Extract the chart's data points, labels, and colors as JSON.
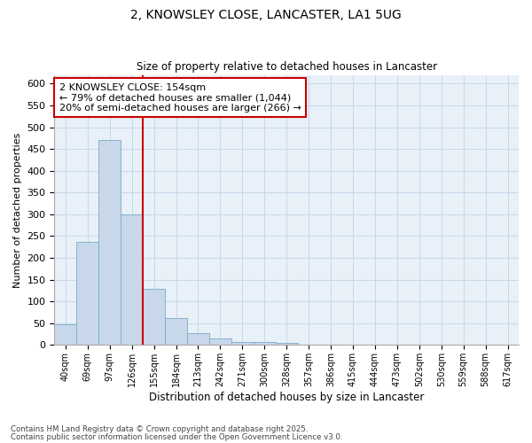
{
  "title1": "2, KNOWSLEY CLOSE, LANCASTER, LA1 5UG",
  "title2": "Size of property relative to detached houses in Lancaster",
  "xlabel": "Distribution of detached houses by size in Lancaster",
  "ylabel": "Number of detached properties",
  "categories": [
    "40sqm",
    "69sqm",
    "97sqm",
    "126sqm",
    "155sqm",
    "184sqm",
    "213sqm",
    "242sqm",
    "271sqm",
    "300sqm",
    "328sqm",
    "357sqm",
    "386sqm",
    "415sqm",
    "444sqm",
    "473sqm",
    "502sqm",
    "530sqm",
    "559sqm",
    "588sqm",
    "617sqm"
  ],
  "values": [
    47,
    237,
    470,
    300,
    130,
    62,
    28,
    15,
    7,
    7,
    5,
    1,
    0,
    0,
    0,
    0,
    0,
    0,
    0,
    0,
    1
  ],
  "bar_color": "#c8d8ea",
  "bar_edge_color": "#7aaac8",
  "vline_color": "#cc0000",
  "annotation_text": "2 KNOWSLEY CLOSE: 154sqm\n← 79% of detached houses are smaller (1,044)\n20% of semi-detached houses are larger (266) →",
  "annotation_box_facecolor": "#ffffff",
  "annotation_box_edgecolor": "#cc0000",
  "grid_color": "#c8d8e8",
  "background_color": "#e8f0f8",
  "footer1": "Contains HM Land Registry data © Crown copyright and database right 2025.",
  "footer2": "Contains public sector information licensed under the Open Government Licence v3.0.",
  "ylim": [
    0,
    620
  ],
  "yticks": [
    0,
    50,
    100,
    150,
    200,
    250,
    300,
    350,
    400,
    450,
    500,
    550,
    600
  ]
}
